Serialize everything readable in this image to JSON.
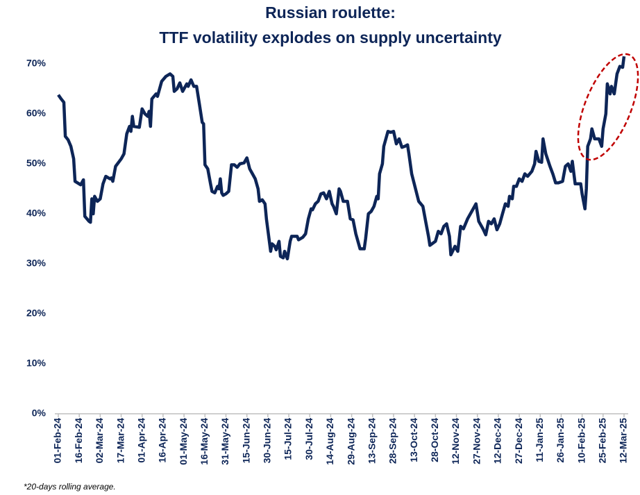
{
  "chart_data": {
    "type": "line",
    "title": "Russian roulette:",
    "subtitle": "TTF volatility explodes on supply uncertainty",
    "note": "*20-days rolling average.",
    "x": [
      "01-Feb-24",
      "03-Feb-24",
      "05-Feb-24",
      "06-Feb-24",
      "08-Feb-24",
      "10-Feb-24",
      "12-Feb-24",
      "13-Feb-24",
      "17-Feb-24",
      "19-Feb-24",
      "20-Feb-24",
      "23-Feb-24",
      "24-Feb-24",
      "25-Feb-24",
      "26-Feb-24",
      "27-Feb-24",
      "29-Feb-24",
      "02-Mar-24",
      "04-Mar-24",
      "06-Mar-24",
      "09-Mar-24",
      "10-Mar-24",
      "11-Mar-24",
      "13-Mar-24",
      "17-Mar-24",
      "19-Mar-24",
      "21-Mar-24",
      "23-Mar-24",
      "24-Mar-24",
      "25-Mar-24",
      "26-Mar-24",
      "30-Mar-24",
      "01-Apr-24",
      "03-Apr-24",
      "05-Apr-24",
      "06-Apr-24",
      "07-Apr-24",
      "08-Apr-24",
      "11-Apr-24",
      "12-Apr-24",
      "15-Apr-24",
      "18-Apr-24",
      "21-Apr-24",
      "23-Apr-24",
      "24-Apr-24",
      "26-Apr-24",
      "28-Apr-24",
      "30-Apr-24",
      "02-May-24",
      "03-May-24",
      "04-May-24",
      "06-May-24",
      "08-May-24",
      "10-May-24",
      "12-May-24",
      "14-May-24",
      "15-May-24",
      "16-May-24",
      "18-May-24",
      "20-May-24",
      "21-May-24",
      "23-May-24",
      "25-May-24",
      "26-May-24",
      "27-May-24",
      "28-May-24",
      "29-May-24",
      "31-May-24",
      "02-Jun-24",
      "04-Jun-24",
      "06-Jun-24",
      "08-Jun-24",
      "10-Jun-24",
      "13-Jun-24",
      "15-Jun-24",
      "17-Jun-24",
      "19-Jun-24",
      "21-Jun-24",
      "23-Jun-24",
      "24-Jun-24",
      "26-Jun-24",
      "28-Jun-24",
      "29-Jun-24",
      "02-Jul-24",
      "03-Jul-24",
      "05-Jul-24",
      "06-Jul-24",
      "08-Jul-24",
      "09-Jul-24",
      "11-Jul-24",
      "12-Jul-24",
      "14-Jul-24",
      "16-Jul-24",
      "17-Jul-24",
      "21-Jul-24",
      "22-Jul-24",
      "25-Jul-24",
      "27-Jul-24",
      "29-Jul-24",
      "31-Jul-24",
      "01-Aug-24",
      "03-Aug-24",
      "05-Aug-24",
      "07-Aug-24",
      "09-Aug-24",
      "11-Aug-24",
      "13-Aug-24",
      "15-Aug-24",
      "16-Aug-24",
      "18-Aug-24",
      "20-Aug-24",
      "21-Aug-24",
      "23-Aug-24",
      "26-Aug-24",
      "28-Aug-24",
      "30-Aug-24",
      "01-Sep-24",
      "04-Sep-24",
      "07-Sep-24",
      "08-Sep-24",
      "10-Sep-24",
      "12-Sep-24",
      "14-Sep-24",
      "16-Sep-24",
      "17-Sep-24",
      "18-Sep-24",
      "20-Sep-24",
      "21-Sep-24",
      "24-Sep-24",
      "26-Sep-24",
      "28-Sep-24",
      "30-Sep-24",
      "02-Oct-24",
      "04-Oct-24",
      "06-Oct-24",
      "08-Oct-24",
      "09-Oct-24",
      "11-Oct-24",
      "16-Oct-24",
      "19-Oct-24",
      "21-Oct-24",
      "23-Oct-24",
      "24-Oct-24",
      "28-Oct-24",
      "30-Oct-24",
      "01-Nov-24",
      "03-Nov-24",
      "05-Nov-24",
      "07-Nov-24",
      "08-Nov-24",
      "11-Nov-24",
      "13-Nov-24",
      "15-Nov-24",
      "17-Nov-24",
      "20-Nov-24",
      "23-Nov-24",
      "26-Nov-24",
      "28-Nov-24",
      "01-Dec-24",
      "03-Dec-24",
      "05-Dec-24",
      "07-Dec-24",
      "09-Dec-24",
      "11-Dec-24",
      "13-Dec-24",
      "15-Dec-24",
      "17-Dec-24",
      "19-Dec-24",
      "20-Dec-24",
      "22-Dec-24",
      "23-Dec-24",
      "25-Dec-24",
      "27-Dec-24",
      "29-Dec-24",
      "31-Dec-24",
      "02-Jan-25",
      "05-Jan-25",
      "07-Jan-25",
      "08-Jan-25",
      "10-Jan-25",
      "12-Jan-25",
      "13-Jan-25",
      "15-Jan-25",
      "18-Jan-25",
      "20-Jan-25",
      "22-Jan-25",
      "24-Jan-25",
      "27-Jan-25",
      "29-Jan-25",
      "31-Jan-25",
      "02-Feb-25",
      "03-Feb-25",
      "05-Feb-25",
      "09-Feb-25",
      "10-Feb-25",
      "12-Feb-25",
      "13-Feb-25",
      "14-Feb-25",
      "16-Feb-25",
      "17-Feb-25",
      "19-Feb-25",
      "22-Feb-25",
      "24-Feb-25",
      "25-Feb-25",
      "27-Feb-25",
      "28-Feb-25",
      "02-Mar-25",
      "03-Mar-25",
      "05-Mar-25",
      "07-Mar-25",
      "09-Mar-25",
      "11-Mar-25",
      "12-Mar-25"
    ],
    "series": [
      {
        "name": "TTF volatility",
        "color": "#0d2557",
        "values": [
          63.8,
          63,
          62.3,
          55.5,
          54.8,
          53.5,
          51,
          46.5,
          45.8,
          46.8,
          39.5,
          38.5,
          38.3,
          43,
          40,
          43.5,
          42.5,
          43,
          46,
          47.5,
          47,
          47.2,
          46.5,
          49.5,
          51,
          52,
          56,
          57.5,
          56.5,
          59.5,
          57.5,
          57.3,
          61,
          60,
          59.5,
          60.5,
          57.5,
          63,
          64,
          63.5,
          66.5,
          67.5,
          68,
          67.5,
          64.5,
          65,
          66.2,
          64.5,
          65.5,
          66,
          65.5,
          66.8,
          65.5,
          65.5,
          62,
          58.3,
          58,
          49.8,
          49,
          46,
          44.5,
          44.2,
          45.5,
          45,
          47,
          44.2,
          43.7,
          44,
          44.5,
          49.8,
          49.8,
          49.3,
          50,
          50.2,
          51.2,
          49,
          48,
          47,
          45,
          42.5,
          42.8,
          42,
          39,
          32.5,
          34,
          33.5,
          32.8,
          34.5,
          31.5,
          31.2,
          32.5,
          31,
          34.5,
          35.5,
          35.5,
          34.8,
          35.3,
          36,
          39,
          41,
          40.8,
          42,
          42.5,
          44,
          44.2,
          43,
          44.5,
          42,
          41.5,
          40,
          45,
          44.5,
          42.5,
          42.5,
          39,
          38.8,
          36,
          33,
          33,
          35,
          40,
          40.5,
          41.5,
          43.5,
          43,
          48,
          50,
          53.5,
          56.5,
          56.3,
          56.5,
          54,
          55,
          53.3,
          53.5,
          53.8,
          52,
          48,
          42.5,
          41.5,
          38.5,
          35.5,
          33.7,
          34.5,
          36.5,
          36,
          37.5,
          38,
          35.5,
          31.8,
          33.5,
          32.5,
          37.5,
          37,
          39,
          40.5,
          42,
          38.5,
          37,
          35.8,
          38.5,
          38,
          39,
          36.8,
          38,
          40,
          42,
          41.5,
          43.5,
          43,
          45.5,
          45.5,
          47,
          46.5,
          48,
          47.5,
          48.5,
          50,
          52.5,
          50.5,
          50.3,
          55,
          52,
          49.5,
          48,
          46.2,
          46.2,
          46.5,
          49.5,
          50,
          48.5,
          50.5,
          46,
          46,
          44,
          41,
          45,
          53.5,
          55,
          57,
          55,
          55,
          53.5,
          57,
          60,
          66,
          64,
          65.5,
          64,
          68,
          69.5,
          69.3,
          71.5
        ]
      }
    ],
    "xlim": [
      "01-Feb-24",
      "12-Mar-25"
    ],
    "xticks": [
      "01-Feb-24",
      "16-Feb-24",
      "02-Mar-24",
      "17-Mar-24",
      "01-Apr-24",
      "16-Apr-24",
      "01-May-24",
      "16-May-24",
      "31-May-24",
      "15-Jun-24",
      "30-Jun-24",
      "15-Jul-24",
      "30-Jul-24",
      "14-Aug-24",
      "29-Aug-24",
      "13-Sep-24",
      "28-Sep-24",
      "13-Oct-24",
      "28-Oct-24",
      "12-Nov-24",
      "27-Nov-24",
      "12-Dec-24",
      "27-Dec-24",
      "11-Jan-25",
      "26-Jan-25",
      "10-Feb-25",
      "25-Feb-25",
      "12-Mar-25"
    ],
    "ylim": [
      0,
      75
    ],
    "yticks": [
      {
        "value": 0,
        "label": "0%"
      },
      {
        "value": 10,
        "label": "10%"
      },
      {
        "value": 20,
        "label": "20%"
      },
      {
        "value": 30,
        "label": "30%"
      },
      {
        "value": 40,
        "label": "40%"
      },
      {
        "value": 50,
        "label": "50%"
      },
      {
        "value": 60,
        "label": "60%"
      },
      {
        "value": 70,
        "label": "70%"
      }
    ],
    "grid": false
  }
}
